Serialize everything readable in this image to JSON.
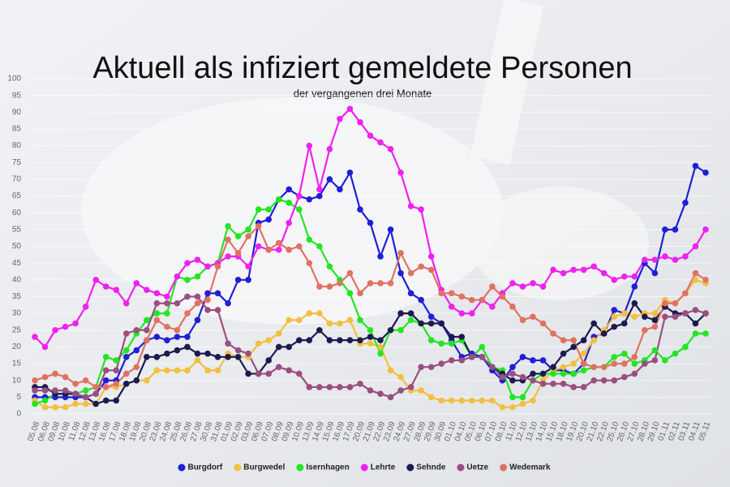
{
  "chart_data": {
    "type": "line",
    "title": "Aktuell als infiziert gemeldete Personen",
    "subtitle": "der vergangenen drei Monate",
    "categories": [
      "05.08",
      "06.08",
      "09.08",
      "10.08",
      "11.08",
      "12.08",
      "13.08",
      "16.08",
      "17.08",
      "18.08",
      "19.08",
      "20.08",
      "23.08",
      "24.08",
      "25.08",
      "26.08",
      "27.08",
      "30.08",
      "31.08",
      "01.09",
      "02.09",
      "03.09",
      "06.09",
      "07.09",
      "08.09",
      "09.09",
      "10.09",
      "13.09",
      "14.09",
      "15.09",
      "16.09",
      "17.09",
      "20.09",
      "21.09",
      "22.09",
      "23.09",
      "24.09",
      "27.09",
      "28.09",
      "29.09",
      "30.09",
      "01.10",
      "04.10",
      "05.10",
      "06.10",
      "07.10",
      "08.10",
      "11.10",
      "12.10",
      "13.10",
      "14.10",
      "15.10",
      "18.10",
      "19.10",
      "20.10",
      "21.10",
      "22.10",
      "25.10",
      "26.10",
      "27.10",
      "28.10",
      "29.10",
      "01.11",
      "02.11",
      "03.11",
      "04.11",
      "05.11"
    ],
    "ylim": [
      0,
      100
    ],
    "yticks": [
      0,
      5,
      10,
      15,
      20,
      25,
      30,
      35,
      40,
      45,
      50,
      55,
      60,
      65,
      70,
      75,
      80,
      85,
      90,
      95,
      100
    ],
    "grid": true,
    "legend": "bottom",
    "series": [
      {
        "name": "Burgdorf",
        "color": "#1f1fd6",
        "values": [
          5,
          5,
          5,
          5,
          5,
          5,
          6,
          10,
          10,
          17,
          19,
          22,
          23,
          22,
          23,
          23,
          28,
          36,
          36,
          33,
          40,
          40,
          57,
          58,
          64,
          67,
          65,
          64,
          65,
          70,
          67,
          72,
          61,
          57,
          47,
          55,
          42,
          36,
          34,
          29,
          27,
          22,
          17,
          18,
          17,
          13,
          10,
          14,
          17,
          16,
          16,
          13,
          13,
          12,
          15,
          23,
          24,
          31,
          30,
          38,
          45,
          42,
          55,
          55,
          63,
          74,
          72
        ]
      },
      {
        "name": "Burgwedel",
        "color": "#f2c040",
        "values": [
          4,
          2,
          2,
          2,
          3,
          3,
          3,
          8,
          8,
          9,
          10,
          10,
          13,
          13,
          13,
          13,
          16,
          13,
          13,
          18,
          17,
          17,
          21,
          22,
          24,
          28,
          28,
          30,
          30,
          27,
          27,
          28,
          21,
          21,
          20,
          13,
          11,
          7,
          7,
          5,
          4,
          4,
          4,
          4,
          4,
          4,
          2,
          2,
          3,
          4,
          10,
          13,
          14,
          15,
          18,
          22,
          25,
          29,
          30,
          29,
          30,
          30,
          34,
          33,
          36,
          40,
          39
        ]
      },
      {
        "name": "Isernhagen",
        "color": "#22e622",
        "values": [
          3,
          4,
          6,
          6,
          6,
          7,
          8,
          17,
          16,
          19,
          24,
          28,
          30,
          30,
          41,
          40,
          41,
          44,
          45,
          56,
          53,
          55,
          61,
          61,
          64,
          63,
          61,
          52,
          50,
          44,
          40,
          36,
          28,
          25,
          18,
          25,
          25,
          28,
          27,
          22,
          21,
          21,
          22,
          17,
          20,
          14,
          13,
          5,
          5,
          10,
          12,
          12,
          12,
          12,
          13,
          14,
          14,
          17,
          18,
          15,
          16,
          19,
          16,
          18,
          20,
          24,
          24
        ]
      },
      {
        "name": "Lehrte",
        "color": "#ee22ee",
        "values": [
          23,
          20,
          25,
          26,
          27,
          32,
          40,
          38,
          37,
          33,
          39,
          37,
          36,
          35,
          41,
          45,
          46,
          44,
          45,
          47,
          47,
          44,
          50,
          49,
          49,
          57,
          65,
          80,
          67,
          79,
          88,
          91,
          87,
          83,
          81,
          79,
          72,
          62,
          61,
          47,
          37,
          32,
          30,
          30,
          34,
          32,
          36,
          39,
          38,
          39,
          38,
          43,
          42,
          43,
          43,
          44,
          42,
          40,
          41,
          41,
          46,
          46,
          47,
          46,
          47,
          50,
          55
        ]
      },
      {
        "name": "Sehnde",
        "color": "#1b1b50",
        "values": [
          8,
          8,
          6,
          6,
          6,
          5,
          3,
          4,
          4,
          9,
          10,
          17,
          17,
          18,
          19,
          20,
          18,
          18,
          17,
          17,
          17,
          12,
          12,
          16,
          20,
          20,
          22,
          22,
          25,
          22,
          22,
          22,
          22,
          23,
          22,
          25,
          30,
          30,
          27,
          27,
          27,
          23,
          23,
          17,
          17,
          14,
          12,
          10,
          10,
          12,
          12,
          14,
          18,
          20,
          22,
          27,
          24,
          26,
          27,
          33,
          29,
          28,
          32,
          30,
          30,
          27,
          30
        ]
      },
      {
        "name": "Uetze",
        "color": "#9a4f80",
        "values": [
          7,
          7,
          7,
          7,
          6,
          5,
          6,
          13,
          13,
          24,
          25,
          25,
          33,
          33,
          33,
          35,
          35,
          31,
          31,
          21,
          19,
          18,
          12,
          12,
          14,
          13,
          12,
          8,
          8,
          8,
          8,
          8,
          9,
          7,
          6,
          5,
          7,
          8,
          14,
          14,
          15,
          16,
          16,
          17,
          17,
          14,
          11,
          12,
          11,
          10,
          9,
          9,
          9,
          8,
          8,
          10,
          10,
          10,
          11,
          12,
          15,
          16,
          29,
          29,
          30,
          31,
          30
        ]
      },
      {
        "name": "Wedemark",
        "color": "#e07262",
        "values": [
          10,
          11,
          12,
          11,
          9,
          10,
          8,
          8,
          9,
          12,
          14,
          22,
          28,
          26,
          25,
          30,
          33,
          34,
          44,
          52,
          48,
          53,
          56,
          49,
          51,
          49,
          50,
          45,
          38,
          38,
          39,
          42,
          36,
          39,
          39,
          39,
          48,
          42,
          44,
          43,
          36,
          36,
          35,
          34,
          34,
          38,
          35,
          32,
          28,
          29,
          27,
          24,
          22,
          22,
          15,
          14,
          14,
          15,
          15,
          17,
          25,
          26,
          33,
          33,
          36,
          42,
          40
        ]
      }
    ]
  }
}
